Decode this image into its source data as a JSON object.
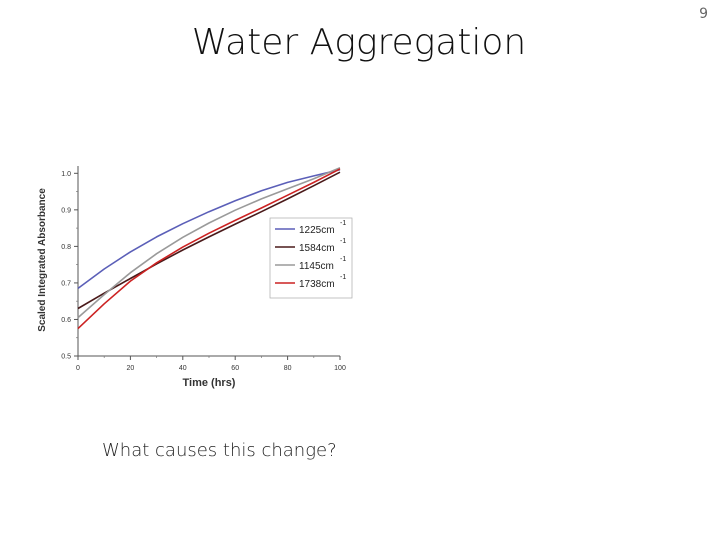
{
  "slide": {
    "title": "Water Aggregation",
    "page_number": "9",
    "caption": "What causes this change?"
  },
  "chart_data": {
    "type": "line",
    "xlabel": "Time (hrs)",
    "ylabel": "Scaled Integrated Absorbance",
    "xlim": [
      0,
      100
    ],
    "ylim": [
      0.5,
      1.02
    ],
    "x_ticks": [
      0,
      20,
      40,
      60,
      80,
      100
    ],
    "y_ticks": [
      0.5,
      0.6,
      0.7,
      0.8,
      0.9,
      1.0
    ],
    "x_tick_labels": [
      "0",
      "20",
      "40",
      "60",
      "80",
      "100"
    ],
    "y_tick_labels": [
      "0.5",
      "0.6",
      "0.7",
      "0.8",
      "0.9",
      "1.0"
    ],
    "grid": false,
    "legend_position": "right-center",
    "series": [
      {
        "name": "1225cm",
        "sup": "-1",
        "color": "#5b5fb8",
        "x": [
          0,
          10,
          20,
          30,
          40,
          50,
          60,
          70,
          80,
          90,
          100
        ],
        "y": [
          0.685,
          0.738,
          0.785,
          0.826,
          0.862,
          0.895,
          0.925,
          0.952,
          0.975,
          0.993,
          1.01
        ]
      },
      {
        "name": "1584cm",
        "sup": "-1",
        "color": "#4a1a1a",
        "x": [
          0,
          10,
          20,
          30,
          40,
          50,
          60,
          70,
          80,
          90,
          100
        ],
        "y": [
          0.63,
          0.672,
          0.712,
          0.752,
          0.79,
          0.826,
          0.861,
          0.895,
          0.93,
          0.966,
          1.003
        ]
      },
      {
        "name": "1145cm",
        "sup": "-1",
        "color": "#9a9a9a",
        "x": [
          0,
          10,
          20,
          30,
          40,
          50,
          60,
          70,
          80,
          90,
          100
        ],
        "y": [
          0.605,
          0.668,
          0.728,
          0.78,
          0.825,
          0.864,
          0.899,
          0.93,
          0.958,
          0.985,
          1.015
        ]
      },
      {
        "name": "1738cm",
        "sup": "-1",
        "color": "#cc2222",
        "x": [
          0,
          10,
          20,
          30,
          40,
          50,
          60,
          70,
          80,
          90,
          100
        ],
        "y": [
          0.575,
          0.643,
          0.705,
          0.755,
          0.798,
          0.836,
          0.871,
          0.905,
          0.94,
          0.975,
          1.012
        ]
      }
    ]
  }
}
